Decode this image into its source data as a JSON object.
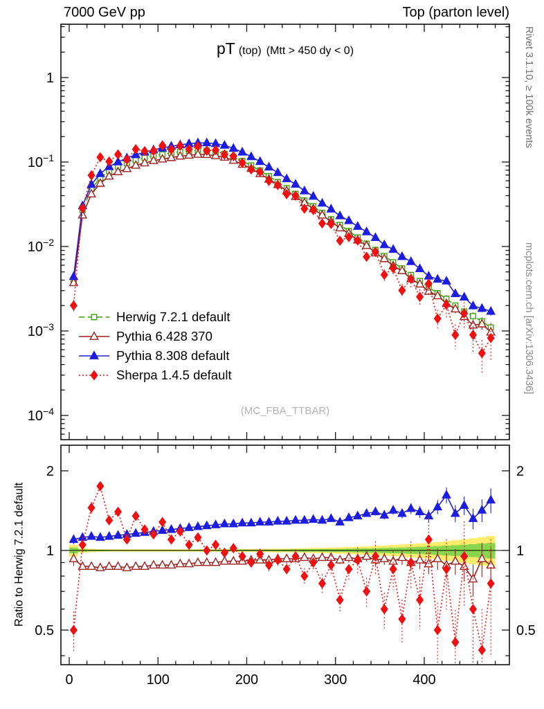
{
  "header": {
    "left": "7000 GeV pp",
    "right": "Top (parton level)"
  },
  "title": {
    "main": "pT",
    "sub": "(top)",
    "cut": "(Mtt > 450 dy < 0)"
  },
  "side_labels": {
    "top_right": "Rivet 3.1.10, ≥ 100k events",
    "bottom_right": "mcplots.cern.ch [arXiv:1306.3436]"
  },
  "watermark": "(MC_FBA_TTBAR)",
  "chart_data": {
    "type": "line",
    "title": "pT (top) (Mtt > 450 dy < 0)",
    "xlabel": "",
    "ylabel": "",
    "ratio_ylabel": "Ratio to Herwig 7.2.1 default",
    "x_ticks": [
      0,
      100,
      200,
      300,
      400
    ],
    "x_minor_step": 20,
    "xlim": [
      -9,
      496
    ],
    "main_ylog_ticks": [
      0,
      -1,
      -2,
      -3,
      -4
    ],
    "main_ylim": [
      5.3e-05,
      4.2
    ],
    "ratio_ticks": [
      0.5,
      1,
      2
    ],
    "ratio_minor_ticks": [
      0.4,
      0.5,
      0.6,
      0.7,
      0.8,
      0.9,
      1,
      2
    ],
    "ratio_lim": [
      0.37,
      2.5
    ],
    "bin_width": 10,
    "x": [
      5,
      15,
      25,
      35,
      45,
      55,
      65,
      75,
      85,
      95,
      105,
      115,
      125,
      135,
      145,
      155,
      165,
      175,
      185,
      195,
      205,
      215,
      225,
      235,
      245,
      255,
      265,
      275,
      285,
      295,
      305,
      315,
      325,
      335,
      345,
      355,
      365,
      375,
      385,
      395,
      405,
      415,
      425,
      435,
      445,
      455,
      465,
      475
    ],
    "err_rel_base": [
      0.05,
      0.02,
      0.015,
      0.012,
      0.011,
      0.01,
      0.01,
      0.01,
      0.01,
      0.01,
      0.01,
      0.01,
      0.01,
      0.01,
      0.011,
      0.011,
      0.011,
      0.012,
      0.012,
      0.013,
      0.013,
      0.014,
      0.015,
      0.016,
      0.017,
      0.018,
      0.02,
      0.022,
      0.024,
      0.026,
      0.028,
      0.03,
      0.033,
      0.036,
      0.04,
      0.044,
      0.048,
      0.053,
      0.058,
      0.064,
      0.07,
      0.077,
      0.085,
      0.093,
      0.102,
      0.112,
      0.123,
      0.135
    ],
    "band_colors": {
      "outer": "#ffe95c",
      "inner": "#7bd44a"
    },
    "series": [
      {
        "id": "herwig",
        "name": "Herwig 7.2.1 default",
        "color": "#3aa309",
        "line": "dashed",
        "marker": "square-open",
        "msize": 7.5,
        "err_scale": 1.0,
        "reference": true,
        "values_main": [
          0.004,
          0.027,
          0.048,
          0.065,
          0.078,
          0.088,
          0.097,
          0.105,
          0.112,
          0.118,
          0.123,
          0.128,
          0.132,
          0.135,
          0.137,
          0.136,
          0.132,
          0.125,
          0.115,
          0.103,
          0.091,
          0.079,
          0.068,
          0.058,
          0.049,
          0.042,
          0.035,
          0.03,
          0.025,
          0.021,
          0.018,
          0.0152,
          0.0128,
          0.0108,
          0.0091,
          0.0077,
          0.0065,
          0.0055,
          0.0046,
          0.0039,
          0.0033,
          0.0028,
          0.0024,
          0.002,
          0.0017,
          0.0015,
          0.0013,
          0.0011
        ]
      },
      {
        "id": "pythia6",
        "name": "Pythia 6.428 370",
        "color": "#9c1f1f",
        "line": "solid",
        "marker": "triangle-open",
        "msize": 9.5,
        "err_scale": 1.2,
        "reference": false,
        "ratio_to_herwig": [
          0.93,
          0.87,
          0.87,
          0.86,
          0.87,
          0.87,
          0.86,
          0.87,
          0.87,
          0.88,
          0.88,
          0.88,
          0.89,
          0.89,
          0.9,
          0.9,
          0.9,
          0.91,
          0.91,
          0.91,
          0.92,
          0.92,
          0.92,
          0.93,
          0.93,
          0.93,
          0.94,
          0.93,
          0.94,
          0.94,
          0.92,
          0.94,
          0.93,
          0.95,
          0.92,
          0.93,
          0.91,
          0.94,
          0.9,
          0.92,
          0.89,
          0.93,
          0.88,
          0.91,
          0.87,
          0.78,
          0.93,
          0.88
        ]
      },
      {
        "id": "pythia8",
        "name": "Pythia 8.308 default",
        "color": "#1d1de0",
        "line": "solid",
        "marker": "triangle-filled",
        "msize": 9.5,
        "err_scale": 0.8,
        "reference": false,
        "ratio_to_herwig": [
          1.1,
          1.12,
          1.13,
          1.12,
          1.13,
          1.14,
          1.15,
          1.16,
          1.17,
          1.18,
          1.19,
          1.2,
          1.21,
          1.22,
          1.23,
          1.24,
          1.25,
          1.26,
          1.26,
          1.27,
          1.27,
          1.28,
          1.28,
          1.29,
          1.29,
          1.3,
          1.3,
          1.31,
          1.3,
          1.32,
          1.28,
          1.33,
          1.35,
          1.38,
          1.4,
          1.36,
          1.42,
          1.38,
          1.44,
          1.4,
          1.35,
          1.46,
          1.62,
          1.38,
          1.48,
          1.32,
          1.42,
          1.55
        ]
      },
      {
        "id": "sherpa",
        "name": "Sherpa 1.4.5 default",
        "color": "#ee1111",
        "line": "dotted",
        "marker": "diamond-filled",
        "msize": 9.5,
        "err_scale": 3.5,
        "reference": false,
        "ratio_to_herwig": [
          0.5,
          1.05,
          1.45,
          1.75,
          1.3,
          1.4,
          1.1,
          1.35,
          1.2,
          1.15,
          1.28,
          1.1,
          1.18,
          1.05,
          1.12,
          1.0,
          1.05,
          0.98,
          1.02,
          0.95,
          0.9,
          0.97,
          0.88,
          0.92,
          0.85,
          0.95,
          0.8,
          0.9,
          0.75,
          0.88,
          0.65,
          0.85,
          0.92,
          0.7,
          0.95,
          0.6,
          0.85,
          0.55,
          0.9,
          0.65,
          1.1,
          0.5,
          0.85,
          0.45,
          0.95,
          0.6,
          0.42,
          0.75
        ]
      }
    ]
  }
}
